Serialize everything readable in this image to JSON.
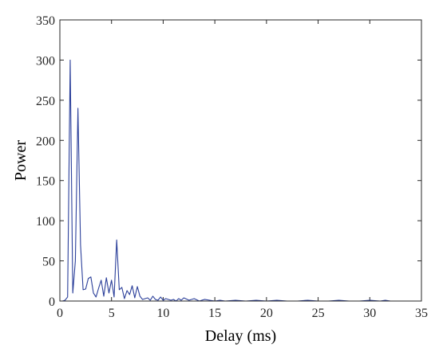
{
  "chart_data": {
    "type": "line",
    "title": "",
    "xlabel": "Delay (ms)",
    "ylabel": "Power",
    "xlim": [
      0,
      35
    ],
    "ylim": [
      0,
      350
    ],
    "xticks": [
      0,
      5,
      10,
      15,
      20,
      25,
      30,
      35
    ],
    "yticks": [
      0,
      50,
      100,
      150,
      200,
      250,
      300,
      350
    ],
    "xtick_labels": [
      "0",
      "5",
      "10",
      "15",
      "20",
      "25",
      "30",
      "35"
    ],
    "ytick_labels": [
      "0",
      "50",
      "100",
      "150",
      "200",
      "250",
      "300",
      "350"
    ],
    "grid": false,
    "box": true,
    "series": [
      {
        "color": "#2b3f9a",
        "x": [
          0,
          0.25,
          0.5,
          0.75,
          1.0,
          1.25,
          1.5,
          1.75,
          2.0,
          2.25,
          2.5,
          2.75,
          3.0,
          3.25,
          3.5,
          3.75,
          4.0,
          4.25,
          4.5,
          4.75,
          5.0,
          5.25,
          5.5,
          5.75,
          6.0,
          6.25,
          6.5,
          6.75,
          7.0,
          7.25,
          7.5,
          7.75,
          8.0,
          8.25,
          8.5,
          8.75,
          9.0,
          9.25,
          9.5,
          9.75,
          10.0,
          10.25,
          10.5,
          10.75,
          11.0,
          11.25,
          11.5,
          11.75,
          12.0,
          12.5,
          13.0,
          13.5,
          14.0,
          14.5,
          15.0,
          15.5,
          16.0,
          17.0,
          18.0,
          19.0,
          20.0,
          21.0,
          22.0,
          23.0,
          24.0,
          25.0,
          26.0,
          27.0,
          28.0,
          29.0,
          30.0,
          31.0,
          31.5,
          32.0,
          32.5,
          33.0
        ],
        "y": [
          0,
          0,
          1,
          5,
          300,
          10,
          50,
          240,
          70,
          14,
          15,
          28,
          30,
          10,
          5,
          16,
          26,
          6,
          29,
          10,
          26,
          5,
          76,
          14,
          17,
          3,
          13,
          8,
          19,
          4,
          18,
          6,
          2,
          3,
          4,
          1,
          6,
          2,
          1,
          5,
          1,
          3,
          2,
          1,
          2,
          0,
          3,
          1,
          4,
          1,
          3,
          0,
          2,
          1,
          0,
          1,
          0,
          1,
          0,
          1,
          0,
          1,
          0,
          0,
          1,
          0,
          0,
          1,
          0,
          0,
          1,
          0,
          1,
          0,
          0,
          0
        ]
      }
    ]
  }
}
